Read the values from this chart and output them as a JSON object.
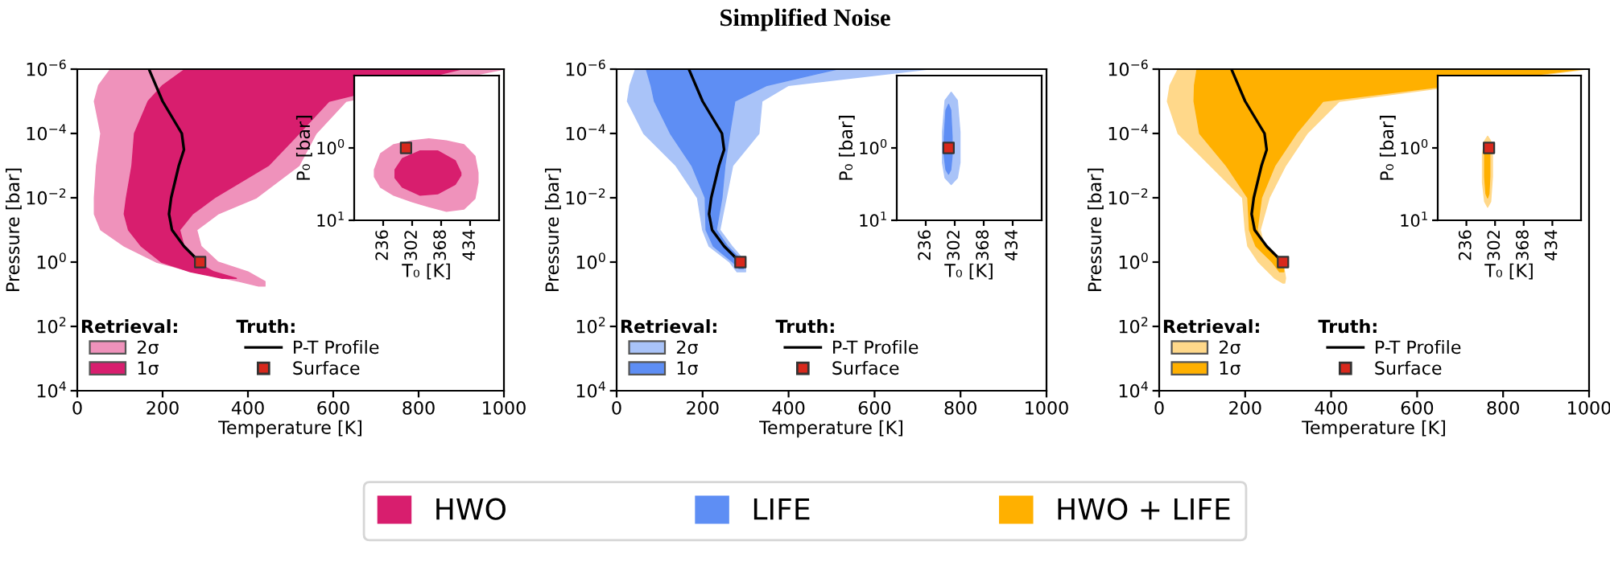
{
  "chart_data": [
    {
      "type": "area",
      "orientation": "horizontal",
      "log": "y",
      "xlabel": "Temperature [K]",
      "ylabel": "Pressure [bar]",
      "xlim": [
        0,
        1000
      ],
      "xticks": [
        0,
        200,
        400,
        600,
        800,
        1000
      ],
      "ylim": [
        10000,
        1e-06
      ],
      "yticks": [
        {
          "value": 1e-06,
          "label": "10$^{−6}$"
        },
        {
          "value": 0.0001,
          "label": "10$^{−4}$"
        },
        {
          "value": 0.01,
          "label": "10$^{−2}$"
        },
        {
          "value": 1,
          "label": "10$^{0}$"
        },
        {
          "value": 100,
          "label": "10$^{2}$"
        },
        {
          "value": 10000,
          "label": "10$^{4}$"
        }
      ],
      "legend": "bottom left",
      "annotations": [
        "Retrieval:",
        "Truth:"
      ],
      "series": [
        {
          "name": "2σ",
          "color": "#ef92bb",
          "x": [
            1e-06,
            3.2e-06,
            1e-05,
            0.0001,
            0.001,
            0.01,
            0.032,
            0.1,
            0.32,
            1,
            2,
            4,
            5.6,
            5.6,
            4,
            2,
            1,
            0.32,
            0.1,
            0.032,
            0.01,
            0.001,
            0.0001,
            1e-05,
            1e-06
          ],
          "values": [
            78,
            50,
            40,
            55,
            45,
            40,
            40,
            55,
            110,
            185,
            270,
            380,
            425,
            440,
            440,
            400,
            330,
            290,
            280,
            330,
            420,
            520,
            560,
            630,
            1000
          ]
        },
        {
          "name": "1σ",
          "color": "#d81e6e",
          "x": [
            1e-06,
            3.2e-06,
            1e-05,
            0.0001,
            0.001,
            0.01,
            0.032,
            0.1,
            0.32,
            1,
            2,
            3.2,
            3.2,
            2,
            1,
            0.32,
            0.1,
            0.032,
            0.01,
            0.001,
            0.0001,
            1e-05,
            1e-06
          ],
          "values": [
            253,
            200,
            166,
            134,
            128,
            115,
            110,
            120,
            150,
            197,
            265,
            340,
            373,
            320,
            280,
            250,
            240,
            270,
            322,
            448,
            520,
            590,
            900
          ]
        },
        {
          "name": "P-T Profile",
          "type": "line",
          "color": "#000000",
          "x": [
            1e-06,
            1e-05,
            0.0001,
            0.00032,
            0.001,
            0.01,
            0.032,
            0.1,
            0.32,
            1
          ],
          "values": [
            168,
            200,
            245,
            250,
            238,
            220,
            215,
            222,
            250,
            287
          ]
        },
        {
          "name": "Surface",
          "type": "scatter",
          "marker": "square",
          "color": "#d8281c",
          "x": [
            1
          ],
          "values": [
            288
          ]
        }
      ]
    },
    {
      "type": "area",
      "orientation": "horizontal",
      "log": "y",
      "xlabel": "Temperature [K]",
      "ylabel": "Pressure [bar]",
      "xlim": [
        0,
        1000
      ],
      "xticks": [
        0,
        200,
        400,
        600,
        800,
        1000
      ],
      "ylim": [
        10000,
        1e-06
      ],
      "yticks": [
        {
          "value": 1e-06,
          "label": "10$^{−6}$"
        },
        {
          "value": 0.0001,
          "label": "10$^{−4}$"
        },
        {
          "value": 0.01,
          "label": "10$^{−2}$"
        },
        {
          "value": 1,
          "label": "10$^{0}$"
        },
        {
          "value": 100,
          "label": "10$^{2}$"
        },
        {
          "value": 10000,
          "label": "10$^{4}$"
        }
      ],
      "legend": "bottom left",
      "annotations": [
        "Retrieval:",
        "Truth:"
      ],
      "series": [
        {
          "name": "2σ",
          "color": "#a9c3f8",
          "x": [
            1e-06,
            3.2e-06,
            1e-05,
            0.0001,
            0.001,
            0.01,
            0.1,
            0.32,
            1,
            2,
            2,
            1,
            0.32,
            0.1,
            0.01,
            0.001,
            0.0001,
            1e-05,
            3.2e-06,
            1e-06
          ],
          "values": [
            44,
            31,
            25,
            63,
            138,
            188,
            200,
            215,
            263,
            280,
            300,
            300,
            268,
            240,
            255,
            270,
            331,
            338,
            400,
            725
          ]
        },
        {
          "name": "1σ",
          "color": "#5e8ef4",
          "x": [
            1e-06,
            3.2e-06,
            1e-05,
            0.0001,
            0.001,
            0.01,
            0.1,
            0.32,
            1,
            1.6,
            1.6,
            1,
            0.32,
            0.1,
            0.01,
            0.001,
            0.0001,
            1e-05,
            3.2e-06,
            1e-06
          ],
          "values": [
            69,
            80,
            88,
            125,
            175,
            206,
            208,
            225,
            270,
            285,
            295,
            295,
            258,
            232,
            245,
            252,
            263,
            275,
            350,
            513
          ]
        },
        {
          "name": "P-T Profile",
          "type": "line",
          "color": "#000000",
          "x": [
            1e-06,
            1e-05,
            0.0001,
            0.00032,
            0.001,
            0.01,
            0.032,
            0.1,
            0.32,
            1
          ],
          "values": [
            168,
            200,
            245,
            250,
            238,
            220,
            215,
            222,
            250,
            287
          ]
        },
        {
          "name": "Surface",
          "type": "scatter",
          "marker": "square",
          "color": "#d8281c",
          "x": [
            1
          ],
          "values": [
            288
          ]
        }
      ]
    },
    {
      "type": "area",
      "orientation": "horizontal",
      "log": "y",
      "xlabel": "Temperature [K]",
      "ylabel": "Pressure [bar]",
      "xlim": [
        0,
        1000
      ],
      "xticks": [
        0,
        200,
        400,
        600,
        800,
        1000
      ],
      "ylim": [
        10000,
        1e-06
      ],
      "yticks": [
        {
          "value": 1e-06,
          "label": "10$^{−6}$"
        },
        {
          "value": 0.0001,
          "label": "10$^{−4}$"
        },
        {
          "value": 0.01,
          "label": "10$^{−2}$"
        },
        {
          "value": 1,
          "label": "10$^{0}$"
        },
        {
          "value": 100,
          "label": "10$^{2}$"
        },
        {
          "value": 10000,
          "label": "10$^{4}$"
        }
      ],
      "legend": "bottom left",
      "annotations": [
        "Retrieval:",
        "Truth:"
      ],
      "series": [
        {
          "name": "2σ",
          "color": "#ffd88a",
          "x": [
            1e-06,
            3.2e-06,
            1e-05,
            0.0001,
            0.001,
            0.01,
            0.1,
            0.32,
            1,
            3.2,
            4.5,
            4.5,
            3.2,
            1,
            0.32,
            0.1,
            0.01,
            0.001,
            0.0001,
            1e-05,
            1e-06
          ],
          "values": [
            44,
            25,
            19,
            44,
            119,
            194,
            200,
            206,
            231,
            269,
            288,
            292,
            294,
            288,
            244,
            235,
            256,
            294,
            344,
            419,
            994
          ]
        },
        {
          "name": "1σ",
          "color": "#ffb000",
          "x": [
            1e-06,
            3.2e-06,
            1e-05,
            0.0001,
            0.001,
            0.01,
            0.1,
            0.32,
            1,
            2,
            2,
            1,
            0.32,
            0.1,
            0.01,
            0.001,
            0.0001,
            1e-05,
            1e-06
          ],
          "values": [
            88,
            82,
            81,
            94,
            156,
            206,
            210,
            225,
            263,
            280,
            290,
            288,
            245,
            228,
            238,
            269,
            319,
            381,
            981
          ]
        },
        {
          "name": "P-T Profile",
          "type": "line",
          "color": "#000000",
          "x": [
            1e-06,
            1e-05,
            0.0001,
            0.00032,
            0.001,
            0.01,
            0.032,
            0.1,
            0.32,
            1
          ],
          "values": [
            168,
            200,
            245,
            250,
            238,
            220,
            215,
            222,
            250,
            287
          ]
        },
        {
          "name": "Surface",
          "type": "scatter",
          "marker": "square",
          "color": "#d8281c",
          "x": [
            1
          ],
          "values": [
            288
          ]
        }
      ]
    },
    {
      "type": "area",
      "log": "y",
      "xlabel": "T₀ [K]",
      "ylabel": "P₀ [bar]",
      "xlim": [
        170,
        500
      ],
      "xticks": [
        236,
        302,
        368,
        434
      ],
      "ylim": [
        10,
        0.1
      ],
      "yticks": [
        {
          "value": 1,
          "label": "10$^{0}$"
        },
        {
          "value": 10,
          "label": "10$^{1}$"
        }
      ],
      "series": [
        {
          "color": "#ef92bb",
          "x": [
            216,
            230,
            260,
            300,
            340,
            380,
            420,
            445,
            452,
            452,
            445,
            420,
            380,
            340,
            300,
            260,
            230,
            216
          ],
          "values": [
            2.0,
            1.2,
            0.9,
            0.8,
            0.75,
            0.8,
            0.9,
            1.3,
            2.2,
            3,
            5,
            7,
            7.5,
            6.5,
            5.5,
            4.5,
            3.5,
            2.5
          ]
        },
        {
          "color": "#d81e6e",
          "x": [
            263,
            280,
            320,
            360,
            400,
            413,
            413,
            400,
            360,
            320,
            280,
            263
          ],
          "values": [
            2.0,
            1.4,
            1.1,
            1.1,
            1.5,
            2.2,
            2.4,
            3.2,
            4.3,
            4.5,
            3.5,
            2.6
          ]
        },
        {
          "type": "scatter",
          "marker": "square",
          "color": "#d8281c",
          "x": [
            288
          ],
          "values": [
            1.0
          ]
        }
      ]
    },
    {
      "type": "area",
      "log": "y",
      "xlabel": "T₀ [K]",
      "ylabel": "P₀ [bar]",
      "xlim": [
        170,
        500
      ],
      "xticks": [
        236,
        302,
        368,
        434
      ],
      "ylim": [
        10,
        0.1
      ],
      "yticks": [
        {
          "value": 1,
          "label": "10$^{0}$"
        },
        {
          "value": 10,
          "label": "10$^{1}$"
        }
      ],
      "series": [
        {
          "color": "#a9c3f8",
          "x": [
            274,
            280,
            294,
            308,
            314,
            314,
            308,
            294,
            280,
            274
          ],
          "values": [
            0.6,
            0.22,
            0.17,
            0.22,
            0.6,
            1.6,
            2.6,
            3.2,
            2.6,
            1.6
          ]
        },
        {
          "color": "#5e8ef4",
          "x": [
            278,
            282,
            288,
            293,
            296,
            296,
            293,
            288,
            282,
            278
          ],
          "values": [
            0.7,
            0.3,
            0.25,
            0.3,
            0.7,
            1.3,
            2.0,
            2.3,
            2.0,
            1.3
          ]
        },
        {
          "type": "scatter",
          "marker": "square",
          "color": "#d8281c",
          "x": [
            288
          ],
          "values": [
            1.0
          ]
        }
      ]
    },
    {
      "type": "area",
      "log": "y",
      "xlabel": "T₀ [K]",
      "ylabel": "P₀ [bar]",
      "xlim": [
        170,
        500
      ],
      "xticks": [
        236,
        302,
        368,
        434
      ],
      "ylim": [
        10,
        0.1
      ],
      "yticks": [
        {
          "value": 1,
          "label": "10$^{0}$"
        },
        {
          "value": 10,
          "label": "10$^{1}$"
        }
      ],
      "series": [
        {
          "color": "#ffd88a",
          "x": [
            273,
            278,
            285,
            292,
            296,
            296,
            292,
            285,
            278,
            273
          ],
          "values": [
            1.2,
            0.8,
            0.69,
            0.8,
            1.3,
            2.5,
            5.5,
            6.6,
            5.5,
            3
          ]
        },
        {
          "color": "#ffb000",
          "x": [
            278,
            281,
            285,
            288,
            290,
            290,
            288,
            285,
            281,
            278
          ],
          "values": [
            1.2,
            0.95,
            0.89,
            0.95,
            1.2,
            2.5,
            4.3,
            4.9,
            4.3,
            2.5
          ]
        },
        {
          "type": "scatter",
          "marker": "square",
          "color": "#d8281c",
          "x": [
            288
          ],
          "values": [
            1.0
          ]
        }
      ]
    },
    {
      "type": "other",
      "title": "Simplified Noise",
      "legend": "bottom",
      "series": [
        {
          "name": "HWO",
          "color": "#d81e6e"
        },
        {
          "name": "LIFE",
          "color": "#5e8ef4"
        },
        {
          "name": "HWO + LIFE",
          "color": "#ffb000"
        }
      ]
    }
  ]
}
